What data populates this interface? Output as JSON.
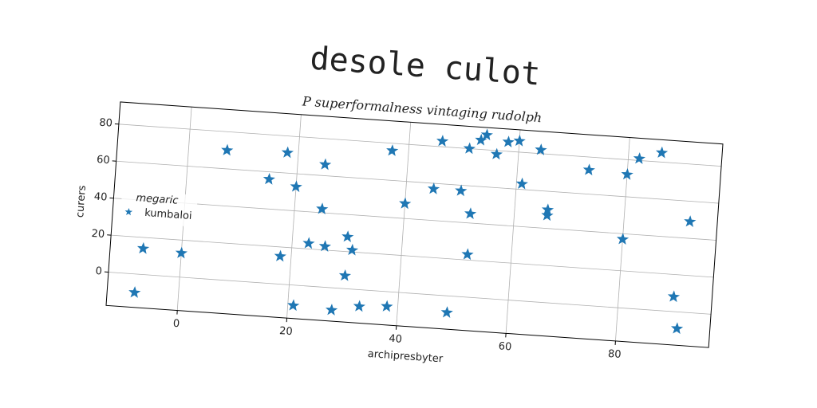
{
  "chart_data": {
    "type": "scatter",
    "title": "desole culot",
    "subtitle": "P superformalness vintaging rudolph",
    "x_label": "archipresbyter",
    "y_label": "curers",
    "legend_title": "megaric",
    "legend_loc": "center left",
    "grid": true,
    "xlim": [
      -13,
      97
    ],
    "ylim": [
      -18,
      92
    ],
    "xticks": [
      0,
      20,
      40,
      60,
      80
    ],
    "yticks": [
      0,
      20,
      40,
      60,
      80
    ],
    "series": [
      {
        "name": "kumbaloi",
        "color": "#1f77b4",
        "marker": "star",
        "x": [
          -8,
          -7,
          0,
          7,
          15,
          18,
          20,
          18,
          21,
          23,
          25,
          25,
          26,
          28,
          30,
          31,
          30,
          33,
          38,
          37,
          40,
          45,
          46,
          49,
          50,
          51,
          52,
          52,
          53,
          54,
          56,
          58,
          60,
          61,
          64,
          66,
          66,
          73,
          80,
          80,
          82,
          86,
          90,
          91,
          92
        ],
        "values": [
          -10,
          14,
          13,
          70,
          56,
          71,
          53,
          15,
          -11,
          23,
          42,
          66,
          22,
          -12,
          28,
          21,
          7,
          -9,
          -8,
          76,
          48,
          57,
          83,
          -9,
          57,
          80,
          45,
          23,
          85,
          88,
          78,
          85,
          86,
          63,
          82,
          50,
          47,
          73,
          37,
          72,
          81,
          85,
          8,
          -9,
          49
        ]
      }
    ]
  }
}
